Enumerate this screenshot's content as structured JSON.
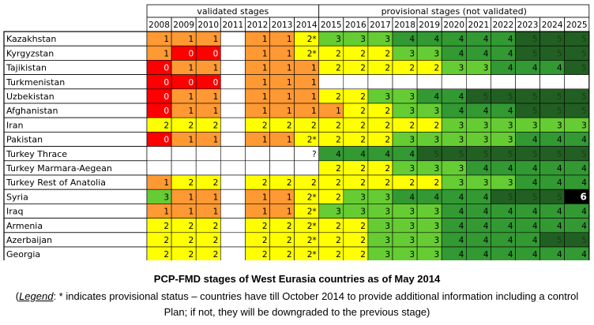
{
  "chart_data": {
    "type": "table",
    "header_groups": [
      {
        "label": "validated stages",
        "years": [
          "2008",
          "2009",
          "2010",
          "2011",
          "2012",
          "2013",
          "2014"
        ]
      },
      {
        "label": "provisional stages (not validated)",
        "years": [
          "2015",
          "2016",
          "2017",
          "2018",
          "2019",
          "2020",
          "2021",
          "2022",
          "2023",
          "2024",
          "2025"
        ]
      }
    ],
    "years": [
      "2008",
      "2009",
      "2010",
      "2011",
      "2012",
      "2013",
      "2014",
      "2015",
      "2016",
      "2017",
      "2018",
      "2019",
      "2020",
      "2021",
      "2022",
      "2023",
      "2024",
      "2025"
    ],
    "stage_colors": {
      "0": "#ff0000",
      "1": "#ff9933",
      "2": "#ffff00",
      "3": "#66cc33",
      "4": "#339933",
      "5": "#225f22",
      "6": "#000000"
    },
    "rows": [
      {
        "country": "Kazakhstan",
        "values": [
          "1",
          "1",
          "1",
          "",
          "1",
          "1",
          "2*",
          "3",
          "3",
          "3",
          "4",
          "4",
          "4",
          "4",
          "4",
          "5",
          "5",
          "5"
        ]
      },
      {
        "country": "Kyrgyzstan",
        "values": [
          "1",
          "0",
          "0",
          "",
          "1",
          "1",
          "2*",
          "2",
          "2",
          "2",
          "3",
          "3",
          "4",
          "4",
          "4",
          "5",
          "5",
          "5"
        ]
      },
      {
        "country": "Tajikistan",
        "values": [
          "0",
          "1",
          "1",
          "",
          "1",
          "1",
          "1",
          "2",
          "2",
          "2",
          "2",
          "2",
          "3",
          "3",
          "4",
          "4",
          "4",
          "5"
        ]
      },
      {
        "country": "Turkmenistan",
        "values": [
          "0",
          "0",
          "0",
          "",
          "1",
          "1",
          "1",
          "",
          "",
          "",
          "",
          "",
          "",
          "",
          "",
          "",
          "",
          ""
        ]
      },
      {
        "country": "Uzbekistan",
        "values": [
          "0",
          "1",
          "1",
          "",
          "1",
          "1",
          "1",
          "2",
          "2",
          "3",
          "3",
          "4",
          "4",
          "5",
          "5",
          "5",
          "5",
          "5"
        ]
      },
      {
        "country": "Afghanistan",
        "values": [
          "0",
          "1",
          "1",
          "",
          "1",
          "1",
          "1",
          "1",
          "2",
          "2",
          "3",
          "3",
          "4",
          "4",
          "4",
          "5",
          "5",
          "5"
        ]
      },
      {
        "country": "Iran",
        "values": [
          "2",
          "2",
          "2",
          "",
          "2",
          "2",
          "2",
          "2",
          "2",
          "2",
          "2",
          "2",
          "3",
          "3",
          "3",
          "3",
          "3",
          "3"
        ]
      },
      {
        "country": "Pakistan",
        "values": [
          "0",
          "1",
          "1",
          "",
          "1",
          "1",
          "2*",
          "2",
          "2",
          "2",
          "3",
          "3",
          "3",
          "3",
          "3",
          "4",
          "4",
          "4"
        ]
      },
      {
        "country": "Turkey Thrace",
        "values": [
          "",
          "",
          "",
          "",
          "",
          "",
          "?",
          "4",
          "4",
          "4",
          "4",
          "5",
          "5",
          "5",
          "5",
          "5",
          "5",
          "5"
        ]
      },
      {
        "country": "Turkey Marmara-Aegean",
        "values": [
          "",
          "",
          "",
          "",
          "",
          "",
          "",
          "2",
          "2",
          "2",
          "3",
          "3",
          "3",
          "4",
          "4",
          "4",
          "4",
          "4"
        ]
      },
      {
        "country": "Turkey Rest of Anatolia",
        "values": [
          "1",
          "2",
          "2",
          "",
          "2",
          "2",
          "2",
          "2",
          "2",
          "2",
          "2",
          "2",
          "3",
          "3",
          "3",
          "4",
          "4",
          "4"
        ]
      },
      {
        "country": "Syria",
        "values": [
          "3",
          "1",
          "1",
          "",
          "1",
          "1",
          "2*",
          "2",
          "3",
          "3",
          "4",
          "4",
          "4",
          "4",
          "5",
          "5",
          "5",
          "6"
        ]
      },
      {
        "country": "Iraq",
        "values": [
          "1",
          "1",
          "1",
          "",
          "1",
          "1",
          "2*",
          "3",
          "3",
          "3",
          "3",
          "3",
          "4",
          "4",
          "4",
          "4",
          "4",
          "4"
        ]
      },
      {
        "country": "Armenia",
        "values": [
          "2",
          "2",
          "2",
          "",
          "2",
          "2",
          "2*",
          "2",
          "2",
          "3",
          "3",
          "3",
          "4",
          "4",
          "4",
          "4",
          "4",
          "4"
        ]
      },
      {
        "country": "Azerbaijan",
        "values": [
          "2",
          "2",
          "2",
          "",
          "2",
          "2",
          "2*",
          "2",
          "2",
          "3",
          "3",
          "3",
          "4",
          "4",
          "4",
          "4",
          "5",
          "5"
        ]
      },
      {
        "country": "Georgia",
        "values": [
          "2",
          "2",
          "2",
          "",
          "2",
          "2",
          "2*",
          "2",
          "2",
          "3",
          "3",
          "3",
          "4",
          "4",
          "4",
          "4",
          "4",
          "4"
        ]
      }
    ]
  },
  "caption": {
    "title": "PCP-FMD stages of West Eurasia countries as of May 2014",
    "legend_open": "(",
    "legend_label": "Legend",
    "legend_text": ": * indicates provisional status – countries have till October 2014 to provide additional information including a control Plan; if not, they will be downgraded to the previous stage)"
  }
}
